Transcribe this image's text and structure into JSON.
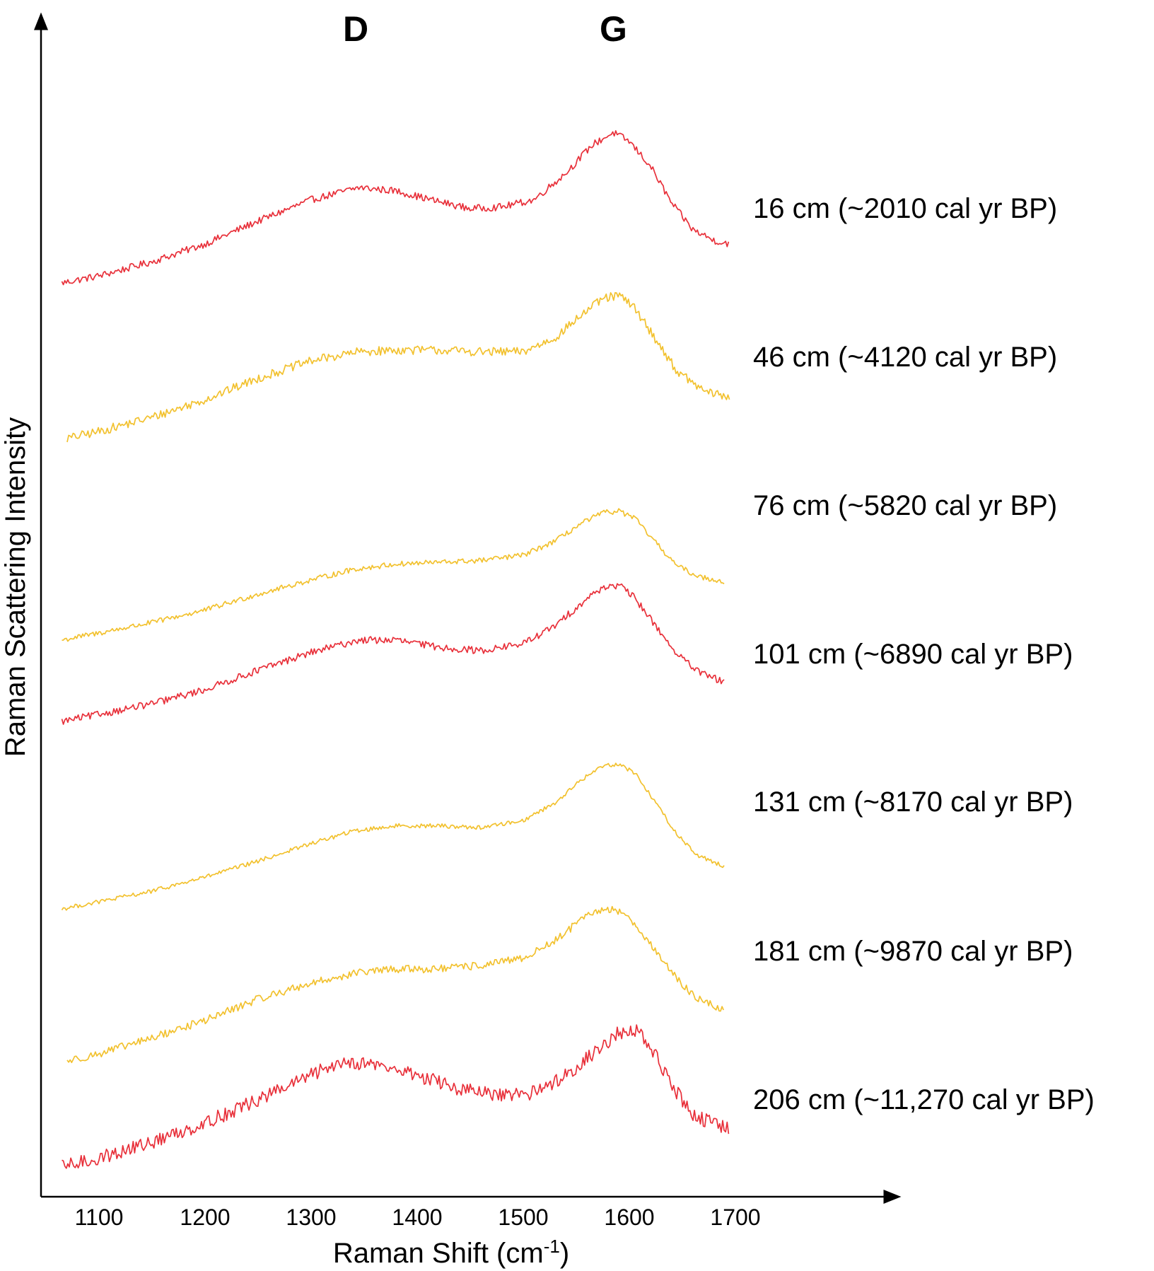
{
  "chart_data": {
    "type": "line",
    "title": "",
    "xlabel": "Raman Shift (cm",
    "xlabel_superscript": "-1",
    "xlabel_close": ")",
    "ylabel": "Raman Scattering Intensity",
    "xlim": [
      1050,
      1760
    ],
    "x_ticks": [
      "1100",
      "1200",
      "1300",
      "1400",
      "1500",
      "1600",
      "1700"
    ],
    "y_ticks": [],
    "grid": false,
    "legend": "none (series labelled at right end of each trace)",
    "stacked_offset_traces": true,
    "band_labels": [
      {
        "label": "D",
        "x": 1342
      },
      {
        "label": "G",
        "x": 1585
      }
    ],
    "series": [
      {
        "name": "16 cm (~2010 cal yr BP)",
        "color": "#e8303a",
        "noise": 0.02,
        "points": [
          [
            1065,
            0.0
          ],
          [
            1100,
            0.04
          ],
          [
            1150,
            0.12
          ],
          [
            1200,
            0.22
          ],
          [
            1250,
            0.35
          ],
          [
            1300,
            0.47
          ],
          [
            1345,
            0.54
          ],
          [
            1380,
            0.52
          ],
          [
            1420,
            0.46
          ],
          [
            1450,
            0.42
          ],
          [
            1480,
            0.43
          ],
          [
            1510,
            0.47
          ],
          [
            1540,
            0.62
          ],
          [
            1565,
            0.78
          ],
          [
            1585,
            0.85
          ],
          [
            1600,
            0.8
          ],
          [
            1620,
            0.66
          ],
          [
            1640,
            0.45
          ],
          [
            1660,
            0.3
          ],
          [
            1680,
            0.24
          ],
          [
            1695,
            0.22
          ]
        ]
      },
      {
        "name": "46 cm (~4120 cal yr BP)",
        "color": "#f2c12e",
        "noise": 0.025,
        "points": [
          [
            1070,
            0.0
          ],
          [
            1100,
            0.04
          ],
          [
            1150,
            0.12
          ],
          [
            1200,
            0.22
          ],
          [
            1250,
            0.34
          ],
          [
            1300,
            0.44
          ],
          [
            1345,
            0.49
          ],
          [
            1380,
            0.5
          ],
          [
            1420,
            0.5
          ],
          [
            1460,
            0.49
          ],
          [
            1500,
            0.49
          ],
          [
            1530,
            0.57
          ],
          [
            1555,
            0.7
          ],
          [
            1575,
            0.79
          ],
          [
            1590,
            0.81
          ],
          [
            1605,
            0.74
          ],
          [
            1625,
            0.56
          ],
          [
            1645,
            0.38
          ],
          [
            1670,
            0.27
          ],
          [
            1695,
            0.23
          ]
        ]
      },
      {
        "name": "76 cm (~5820 cal yr BP)",
        "color": "#f2c12e",
        "noise": 0.015,
        "points": [
          [
            1065,
            0.0
          ],
          [
            1100,
            0.04
          ],
          [
            1150,
            0.1
          ],
          [
            1200,
            0.17
          ],
          [
            1250,
            0.26
          ],
          [
            1300,
            0.34
          ],
          [
            1340,
            0.4
          ],
          [
            1380,
            0.43
          ],
          [
            1420,
            0.44
          ],
          [
            1460,
            0.45
          ],
          [
            1500,
            0.48
          ],
          [
            1530,
            0.56
          ],
          [
            1555,
            0.66
          ],
          [
            1575,
            0.72
          ],
          [
            1590,
            0.73
          ],
          [
            1605,
            0.69
          ],
          [
            1625,
            0.55
          ],
          [
            1645,
            0.42
          ],
          [
            1665,
            0.36
          ],
          [
            1690,
            0.33
          ]
        ]
      },
      {
        "name": "101 cm (~6890 cal yr BP)",
        "color": "#e8303a",
        "noise": 0.02,
        "points": [
          [
            1065,
            0.0
          ],
          [
            1100,
            0.04
          ],
          [
            1150,
            0.1
          ],
          [
            1200,
            0.18
          ],
          [
            1250,
            0.29
          ],
          [
            1300,
            0.39
          ],
          [
            1345,
            0.46
          ],
          [
            1380,
            0.46
          ],
          [
            1420,
            0.42
          ],
          [
            1460,
            0.4
          ],
          [
            1500,
            0.44
          ],
          [
            1530,
            0.54
          ],
          [
            1555,
            0.67
          ],
          [
            1575,
            0.76
          ],
          [
            1590,
            0.77
          ],
          [
            1605,
            0.7
          ],
          [
            1625,
            0.54
          ],
          [
            1645,
            0.38
          ],
          [
            1665,
            0.28
          ],
          [
            1690,
            0.22
          ]
        ]
      },
      {
        "name": "131 cm (~8170 cal yr BP)",
        "color": "#f2c12e",
        "noise": 0.012,
        "points": [
          [
            1065,
            0.0
          ],
          [
            1100,
            0.04
          ],
          [
            1150,
            0.1
          ],
          [
            1200,
            0.18
          ],
          [
            1250,
            0.27
          ],
          [
            1300,
            0.37
          ],
          [
            1340,
            0.44
          ],
          [
            1380,
            0.47
          ],
          [
            1420,
            0.47
          ],
          [
            1460,
            0.46
          ],
          [
            1500,
            0.5
          ],
          [
            1530,
            0.6
          ],
          [
            1555,
            0.73
          ],
          [
            1575,
            0.81
          ],
          [
            1590,
            0.82
          ],
          [
            1605,
            0.77
          ],
          [
            1625,
            0.6
          ],
          [
            1645,
            0.42
          ],
          [
            1665,
            0.3
          ],
          [
            1690,
            0.24
          ]
        ]
      },
      {
        "name": "181 cm (~9870 cal yr BP)",
        "color": "#f2c12e",
        "noise": 0.022,
        "points": [
          [
            1070,
            0.0
          ],
          [
            1100,
            0.04
          ],
          [
            1150,
            0.13
          ],
          [
            1200,
            0.23
          ],
          [
            1250,
            0.35
          ],
          [
            1300,
            0.44
          ],
          [
            1345,
            0.5
          ],
          [
            1380,
            0.52
          ],
          [
            1420,
            0.52
          ],
          [
            1460,
            0.54
          ],
          [
            1500,
            0.58
          ],
          [
            1530,
            0.68
          ],
          [
            1555,
            0.8
          ],
          [
            1575,
            0.86
          ],
          [
            1590,
            0.85
          ],
          [
            1605,
            0.78
          ],
          [
            1625,
            0.62
          ],
          [
            1645,
            0.46
          ],
          [
            1665,
            0.35
          ],
          [
            1690,
            0.28
          ]
        ]
      },
      {
        "name": "206 cm (~11,270 cal yr BP)",
        "color": "#e8303a",
        "noise": 0.04,
        "points": [
          [
            1065,
            0.0
          ],
          [
            1100,
            0.05
          ],
          [
            1150,
            0.14
          ],
          [
            1200,
            0.25
          ],
          [
            1250,
            0.38
          ],
          [
            1300,
            0.52
          ],
          [
            1330,
            0.6
          ],
          [
            1360,
            0.58
          ],
          [
            1400,
            0.52
          ],
          [
            1440,
            0.44
          ],
          [
            1480,
            0.4
          ],
          [
            1510,
            0.42
          ],
          [
            1540,
            0.52
          ],
          [
            1570,
            0.66
          ],
          [
            1590,
            0.76
          ],
          [
            1605,
            0.78
          ],
          [
            1620,
            0.68
          ],
          [
            1640,
            0.46
          ],
          [
            1660,
            0.3
          ],
          [
            1680,
            0.24
          ],
          [
            1695,
            0.22
          ]
        ]
      }
    ]
  }
}
